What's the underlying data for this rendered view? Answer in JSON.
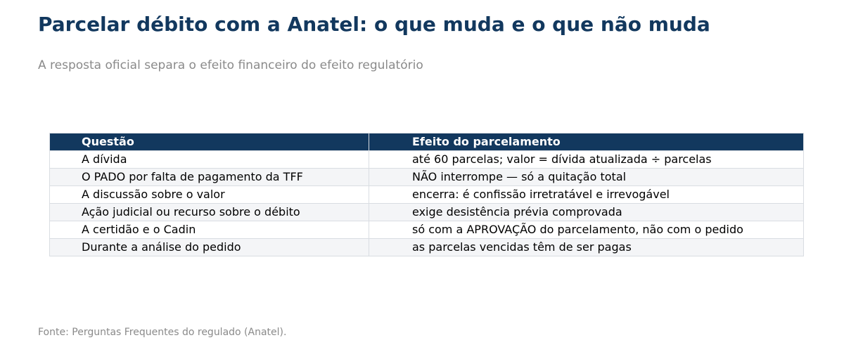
{
  "header": {
    "title": "Parcelar débito com a Anatel: o que muda e o que não muda",
    "subtitle": "A resposta oficial separa o efeito financeiro do efeito regulatório"
  },
  "table": {
    "columns": [
      "Questão",
      "Efeito do parcelamento"
    ],
    "rows": [
      [
        "A dívida",
        "até 60 parcelas; valor = dívida atualizada ÷ parcelas"
      ],
      [
        "O PADO por falta de pagamento da TFF",
        "NÃO interrompe — só a quitação total"
      ],
      [
        "A discussão sobre o valor",
        "encerra: é confissão irretratável e irrevogável"
      ],
      [
        "Ação judicial ou recurso sobre o débito",
        "exige desistência prévia comprovada"
      ],
      [
        "A certidão e o Cadin",
        "só com a APROVAÇÃO do parcelamento, não com o pedido"
      ],
      [
        "Durante a análise do pedido",
        "as parcelas vencidas têm de ser pagas"
      ]
    ]
  },
  "footer": {
    "source": "Fonte: Perguntas Frequentes do regulado (Anatel)."
  },
  "colors": {
    "header_bg": "#12385e",
    "title": "#12385e",
    "muted": "#8a8a8a",
    "stripe": "#f4f5f7",
    "border": "#d9dde2"
  }
}
